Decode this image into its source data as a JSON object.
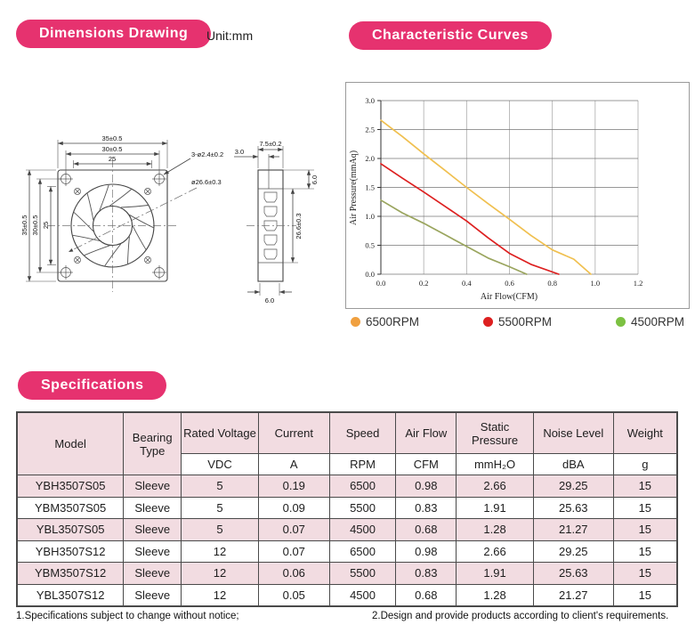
{
  "badges": {
    "dimensions": "Dimensions Drawing",
    "curves": "Characteristic Curves",
    "specs": "Specifications"
  },
  "unit_note": "Unit:mm",
  "drawing": {
    "front": {
      "dim_top": [
        "35±0.5",
        "30±0.5",
        "25"
      ],
      "dim_left": [
        "35±0.5",
        "30±0.5",
        "25"
      ],
      "leader_holes": "3-ø2.4±0.2",
      "leader_dia": "ø26.6±0.3"
    },
    "side": {
      "dim_width": "7.5±0.2",
      "dim_offset": "3.0",
      "dim_top_right": "6.0",
      "dim_height": "26.6±0.3",
      "dim_bottom": "6.0"
    }
  },
  "chart_data": {
    "type": "line",
    "title": "",
    "xlabel": "Air Flow(CFM)",
    "ylabel": "Air Pressure(mmAq)",
    "xlim": [
      0,
      1.2
    ],
    "ylim": [
      0,
      3.0
    ],
    "xticks": [
      "0.0",
      "0.2",
      "0.4",
      "0.6",
      "0.8",
      "1.0",
      "1.2"
    ],
    "yticks": [
      "0.0",
      "0.5",
      "1.0",
      "1.5",
      "2.0",
      "2.5",
      "3.0"
    ],
    "grid": true,
    "legend_position": "bottom",
    "series": [
      {
        "name": "6500RPM",
        "line_color": "#F0C050",
        "dot_color": "#F0A040",
        "points": [
          [
            0,
            2.66
          ],
          [
            0.1,
            2.38
          ],
          [
            0.2,
            2.08
          ],
          [
            0.3,
            1.79
          ],
          [
            0.4,
            1.5
          ],
          [
            0.5,
            1.22
          ],
          [
            0.6,
            0.95
          ],
          [
            0.7,
            0.67
          ],
          [
            0.8,
            0.42
          ],
          [
            0.9,
            0.26
          ],
          [
            0.98,
            0
          ]
        ]
      },
      {
        "name": "5500RPM",
        "line_color": "#DD2020",
        "dot_color": "#DD2020",
        "points": [
          [
            0,
            1.91
          ],
          [
            0.1,
            1.66
          ],
          [
            0.2,
            1.42
          ],
          [
            0.3,
            1.17
          ],
          [
            0.4,
            0.92
          ],
          [
            0.5,
            0.63
          ],
          [
            0.6,
            0.36
          ],
          [
            0.7,
            0.17
          ],
          [
            0.83,
            0
          ]
        ]
      },
      {
        "name": "4500RPM",
        "line_color": "#9AA55E",
        "dot_color": "#7CC142",
        "points": [
          [
            0,
            1.28
          ],
          [
            0.1,
            1.06
          ],
          [
            0.2,
            0.88
          ],
          [
            0.3,
            0.68
          ],
          [
            0.4,
            0.48
          ],
          [
            0.5,
            0.28
          ],
          [
            0.6,
            0.13
          ],
          [
            0.68,
            0
          ]
        ]
      }
    ]
  },
  "table": {
    "columns": [
      "Model",
      "Bearing Type",
      "Rated Voltage",
      "Current",
      "Speed",
      "Air Flow",
      "Static Pressure",
      "Noise Level",
      "Weight"
    ],
    "units": [
      "VDC",
      "A",
      "RPM",
      "CFM",
      "mmH₂O",
      "dBA",
      "g"
    ],
    "rows": [
      [
        "YBH3507S05",
        "Sleeve",
        "5",
        "0.19",
        "6500",
        "0.98",
        "2.66",
        "29.25",
        "15"
      ],
      [
        "YBM3507S05",
        "Sleeve",
        "5",
        "0.09",
        "5500",
        "0.83",
        "1.91",
        "25.63",
        "15"
      ],
      [
        "YBL3507S05",
        "Sleeve",
        "5",
        "0.07",
        "4500",
        "0.68",
        "1.28",
        "21.27",
        "15"
      ],
      [
        "YBH3507S12",
        "Sleeve",
        "12",
        "0.07",
        "6500",
        "0.98",
        "2.66",
        "29.25",
        "15"
      ],
      [
        "YBM3507S12",
        "Sleeve",
        "12",
        "0.06",
        "5500",
        "0.83",
        "1.91",
        "25.63",
        "15"
      ],
      [
        "YBL3507S12",
        "Sleeve",
        "12",
        "0.05",
        "4500",
        "0.68",
        "1.28",
        "21.27",
        "15"
      ]
    ]
  },
  "notes": [
    "1.Specifications subject to change without notice;",
    "2.Design and provide products according to client's requirements."
  ]
}
